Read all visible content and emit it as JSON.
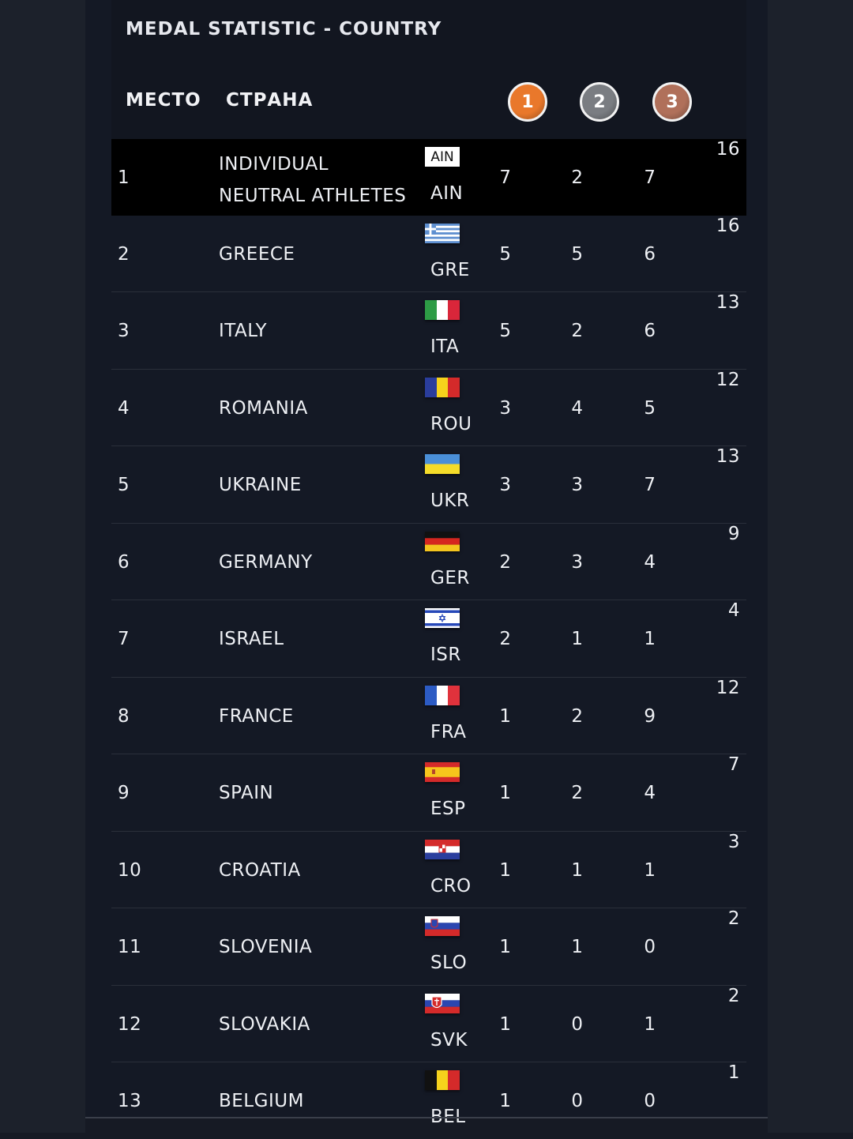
{
  "title": "MEDAL STATISTIC - COUNTRY",
  "header": {
    "place": "МЕСТО",
    "country": "СТРАНА",
    "gold": "1",
    "silver": "2",
    "bronze": "3"
  },
  "colors": {
    "gold": "#e9782b",
    "silver": "#7a7d82",
    "bronze": "#b0705a"
  },
  "rows": [
    {
      "rank": "1",
      "country": "INDIVIDUAL NEUTRAL ATHLETES",
      "country_line1": "INDIVIDUAL",
      "country_line2": "NEUTRAL ATHLETES",
      "code": "AIN",
      "flag_label": "AIN",
      "gold": "7",
      "silver": "2",
      "bronze": "7",
      "total": "16"
    },
    {
      "rank": "2",
      "country": "GREECE",
      "code": "GRE",
      "gold": "5",
      "silver": "5",
      "bronze": "6",
      "total": "16"
    },
    {
      "rank": "3",
      "country": "ITALY",
      "code": "ITA",
      "gold": "5",
      "silver": "2",
      "bronze": "6",
      "total": "13"
    },
    {
      "rank": "4",
      "country": "ROMANIA",
      "code": "ROU",
      "gold": "3",
      "silver": "4",
      "bronze": "5",
      "total": "12"
    },
    {
      "rank": "5",
      "country": "UKRAINE",
      "code": "UKR",
      "gold": "3",
      "silver": "3",
      "bronze": "7",
      "total": "13"
    },
    {
      "rank": "6",
      "country": "GERMANY",
      "code": "GER",
      "gold": "2",
      "silver": "3",
      "bronze": "4",
      "total": "9"
    },
    {
      "rank": "7",
      "country": "ISRAEL",
      "code": "ISR",
      "gold": "2",
      "silver": "1",
      "bronze": "1",
      "total": "4"
    },
    {
      "rank": "8",
      "country": "FRANCE",
      "code": "FRA",
      "gold": "1",
      "silver": "2",
      "bronze": "9",
      "total": "12"
    },
    {
      "rank": "9",
      "country": "SPAIN",
      "code": "ESP",
      "gold": "1",
      "silver": "2",
      "bronze": "4",
      "total": "7"
    },
    {
      "rank": "10",
      "country": "CROATIA",
      "code": "CRO",
      "gold": "1",
      "silver": "1",
      "bronze": "1",
      "total": "3"
    },
    {
      "rank": "11",
      "country": "SLOVENIA",
      "code": "SLO",
      "gold": "1",
      "silver": "1",
      "bronze": "0",
      "total": "2"
    },
    {
      "rank": "12",
      "country": "SLOVAKIA",
      "code": "SVK",
      "gold": "1",
      "silver": "0",
      "bronze": "1",
      "total": "2"
    },
    {
      "rank": "13",
      "country": "BELGIUM",
      "code": "BEL",
      "gold": "1",
      "silver": "0",
      "bronze": "0",
      "total": "1"
    }
  ]
}
